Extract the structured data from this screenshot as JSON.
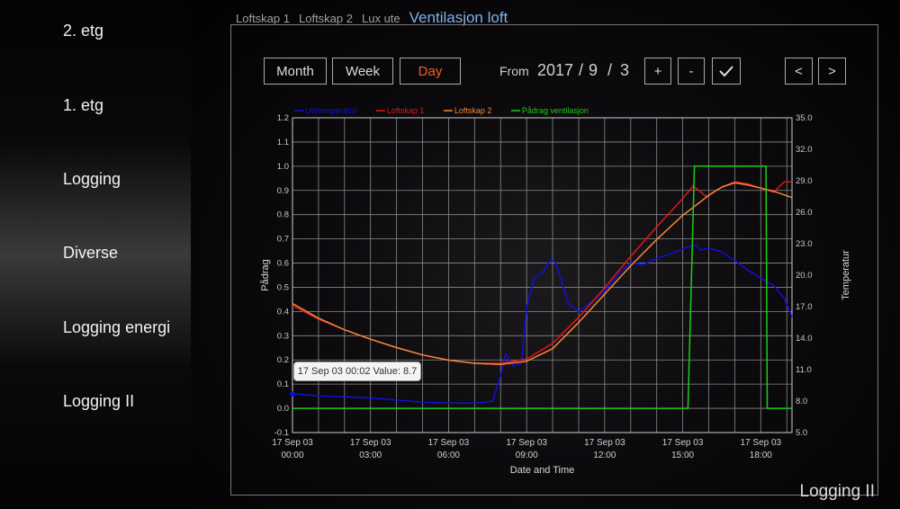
{
  "sidebar": {
    "items": [
      {
        "label": "2. etg"
      },
      {
        "label": "1. etg"
      },
      {
        "label": "Logging"
      },
      {
        "label": "Diverse"
      },
      {
        "label": "Logging energi"
      },
      {
        "label": "Logging II"
      }
    ]
  },
  "tabs": [
    {
      "label": "Loftskap 1"
    },
    {
      "label": "Loftskap 2"
    },
    {
      "label": "Lux ute"
    },
    {
      "label": "Ventilasjon loft"
    }
  ],
  "toolbar": {
    "month_label": "Month",
    "week_label": "Week",
    "day_label": "Day",
    "from_label": "From",
    "year": "2017",
    "sep": "/",
    "month": "9",
    "day": "3",
    "plus_label": "+",
    "minus_label": "-",
    "confirm_icon": "checkmark-icon",
    "prev_label": "<",
    "next_label": ">"
  },
  "tooltip": {
    "text": "17 Sep 03 00:02 Value: 8.7"
  },
  "footer": {
    "title": "Logging II"
  },
  "colors": {
    "outdoor": "#1010e0",
    "cab1": "#e01818",
    "cab2": "#f08a3a",
    "vent": "#19d019",
    "active_tab": "#7fb3e8",
    "active_btn": "#ff5a2a"
  },
  "chart_data": {
    "type": "line",
    "xlabel": "Date and Time",
    "ylabel_left": "Pådrag",
    "ylabel_right": "Temperatur",
    "ylim_left": [
      -0.1,
      1.2
    ],
    "ylim_right": [
      5.0,
      35.0
    ],
    "xlim_hours": [
      0,
      19.2
    ],
    "left_ticks": [
      "1.2",
      "1.1",
      "1.0",
      "0.9",
      "0.8",
      "0.7",
      "0.6",
      "0.5",
      "0.4",
      "0.3",
      "0.2",
      "0.1",
      "0.0",
      "-0.1"
    ],
    "right_ticks": [
      "35.0",
      "32.0",
      "29.0",
      "26.0",
      "23.0",
      "20.0",
      "17.0",
      "14.0",
      "11.0",
      "8.0",
      "5.0"
    ],
    "x_ticks": [
      {
        "date": "17 Sep 03",
        "time": "00:00"
      },
      {
        "date": "17 Sep 03",
        "time": "03:00"
      },
      {
        "date": "17 Sep 03",
        "time": "06:00"
      },
      {
        "date": "17 Sep 03",
        "time": "09:00"
      },
      {
        "date": "17 Sep 03",
        "time": "12:00"
      },
      {
        "date": "17 Sep 03",
        "time": "15:00"
      },
      {
        "date": "17 Sep 03",
        "time": "18:00"
      }
    ],
    "grid": true,
    "legend_position": "top",
    "series": [
      {
        "name": "Utetemperatur",
        "axis": "right",
        "color": "#1010e0",
        "points": [
          [
            0,
            8.7
          ],
          [
            0.5,
            8.6
          ],
          [
            1,
            8.5
          ],
          [
            2,
            8.4
          ],
          [
            3,
            8.3
          ],
          [
            4,
            8.1
          ],
          [
            5,
            7.9
          ],
          [
            6,
            7.8
          ],
          [
            7,
            7.8
          ],
          [
            7.7,
            8.0
          ],
          [
            8,
            10.5
          ],
          [
            8.2,
            12.5
          ],
          [
            8.5,
            11.3
          ],
          [
            8.8,
            11.6
          ],
          [
            9.0,
            17
          ],
          [
            9.3,
            19.8
          ],
          [
            9.6,
            20.2
          ],
          [
            9.9,
            21.4
          ],
          [
            10.1,
            21.3
          ],
          [
            10.3,
            19.8
          ],
          [
            10.6,
            17.3
          ],
          [
            11,
            16.5
          ],
          [
            11.5,
            17.5
          ],
          [
            12,
            18.5
          ],
          [
            12.5,
            20
          ],
          [
            13,
            21.2
          ],
          [
            13.5,
            21.0
          ],
          [
            14,
            21.6
          ],
          [
            14.5,
            22.0
          ],
          [
            15,
            22.5
          ],
          [
            15.2,
            22.7
          ],
          [
            15.5,
            22.9
          ],
          [
            15.7,
            22.4
          ],
          [
            16,
            22.6
          ],
          [
            16.5,
            22.2
          ],
          [
            17,
            21.4
          ],
          [
            17.5,
            20.5
          ],
          [
            18,
            19.7
          ],
          [
            18.5,
            19.0
          ],
          [
            18.9,
            17.8
          ],
          [
            19.2,
            16.0
          ]
        ]
      },
      {
        "name": "Loftskap 1",
        "axis": "right",
        "color": "#e01818",
        "points": [
          [
            0,
            17.1
          ],
          [
            1,
            15.8
          ],
          [
            2,
            14.8
          ],
          [
            3,
            13.9
          ],
          [
            4,
            13.1
          ],
          [
            5,
            12.4
          ],
          [
            6,
            11.9
          ],
          [
            7,
            11.6
          ],
          [
            8,
            11.6
          ],
          [
            9,
            12.0
          ],
          [
            10,
            13.5
          ],
          [
            11,
            16.0
          ],
          [
            12,
            18.8
          ],
          [
            13,
            21.8
          ],
          [
            14,
            24.6
          ],
          [
            15,
            27.3
          ],
          [
            15.4,
            28.5
          ],
          [
            15.9,
            27.5
          ],
          [
            16.5,
            28.4
          ],
          [
            17,
            28.9
          ],
          [
            17.5,
            28.7
          ],
          [
            18,
            28.3
          ],
          [
            18.5,
            27.9
          ],
          [
            18.9,
            28.9
          ],
          [
            19.2,
            28.9
          ]
        ]
      },
      {
        "name": "Loftskap 2",
        "axis": "right",
        "color": "#f08a3a",
        "points": [
          [
            0,
            17.3
          ],
          [
            1,
            15.9
          ],
          [
            2,
            14.8
          ],
          [
            3,
            13.9
          ],
          [
            4,
            13.1
          ],
          [
            5,
            12.4
          ],
          [
            6,
            11.9
          ],
          [
            7,
            11.6
          ],
          [
            8,
            11.5
          ],
          [
            9,
            11.8
          ],
          [
            10,
            13.0
          ],
          [
            11,
            15.5
          ],
          [
            12,
            18.2
          ],
          [
            13,
            20.9
          ],
          [
            14,
            23.4
          ],
          [
            15,
            25.7
          ],
          [
            16,
            27.6
          ],
          [
            16.5,
            28.4
          ],
          [
            17,
            28.8
          ],
          [
            17.5,
            28.6
          ],
          [
            18,
            28.3
          ],
          [
            18.5,
            28.0
          ],
          [
            19.2,
            27.4
          ]
        ]
      },
      {
        "name": "Pådrag ventilasjon",
        "axis": "left",
        "color": "#19d019",
        "points": [
          [
            0,
            0
          ],
          [
            15.2,
            0
          ],
          [
            15.45,
            1.0
          ],
          [
            18.2,
            1.0
          ],
          [
            18.25,
            0
          ],
          [
            19.2,
            0
          ]
        ]
      }
    ]
  }
}
